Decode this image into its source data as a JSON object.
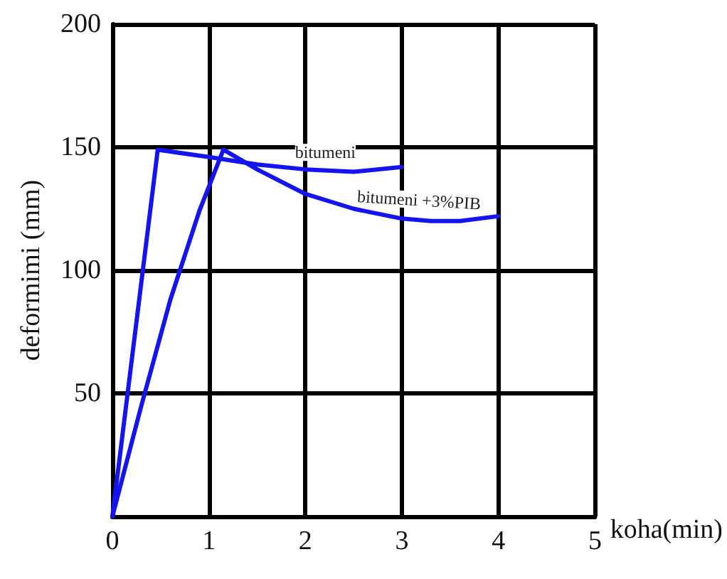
{
  "chart_data": {
    "type": "line",
    "xlabel": "koha(min)",
    "ylabel": "deformimi (mm)",
    "xlim": [
      0,
      5
    ],
    "xticks": [
      0,
      1,
      2,
      3,
      4,
      5
    ],
    "ylim": [
      0,
      200
    ],
    "yticks": [
      {
        "value": 0,
        "label": null
      },
      50,
      100,
      150,
      200
    ],
    "grid": true,
    "marker": "none",
    "line_style": "solid",
    "series": [
      {
        "name": "bitumeni",
        "color": "#1414f0",
        "x": [
          0,
          0.47,
          1,
          1.5,
          2,
          2.5,
          3
        ],
        "values": [
          0,
          149,
          146,
          143,
          141,
          140,
          142
        ]
      },
      {
        "name": "bitumeni +3%PIB",
        "color": "#1414f0",
        "x": [
          0,
          0.3,
          0.6,
          0.9,
          1.15,
          1.5,
          2,
          2.5,
          3,
          3.3,
          3.6,
          4
        ],
        "values": [
          0,
          45,
          88,
          124,
          149,
          141,
          131,
          125,
          121,
          120,
          120,
          122
        ]
      }
    ]
  }
}
